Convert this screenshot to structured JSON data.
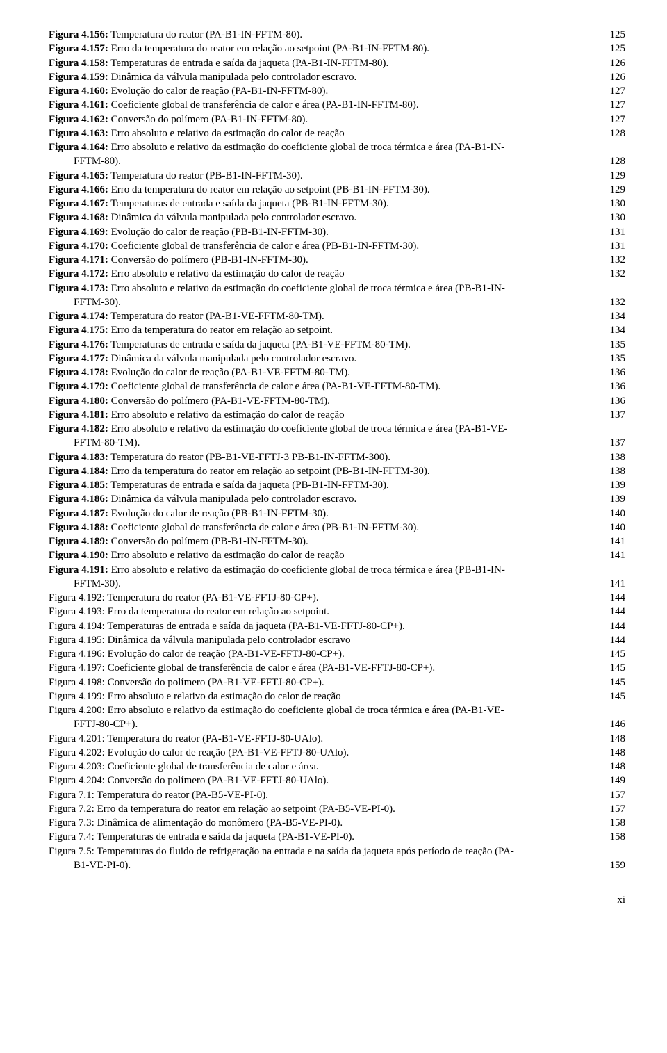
{
  "page_number": "xi",
  "entries": [
    {
      "bold": "Figura 4.156:",
      "text": " Temperatura do reator (PA-B1-IN-FFTM-80).",
      "page": "125",
      "wrap": null
    },
    {
      "bold": "Figura 4.157:",
      "text": " Erro da temperatura do reator em relação ao setpoint (PA-B1-IN-FFTM-80).",
      "page": "125",
      "wrap": null
    },
    {
      "bold": "Figura 4.158:",
      "text": " Temperaturas de entrada e saída da jaqueta (PA-B1-IN-FFTM-80).",
      "page": "126",
      "wrap": null
    },
    {
      "bold": "Figura 4.159:",
      "text": " Dinâmica da válvula manipulada pelo controlador escravo.",
      "page": "126",
      "wrap": null
    },
    {
      "bold": "Figura 4.160:",
      "text": " Evolução do calor de reação (PA-B1-IN-FFTM-80).",
      "page": "127",
      "wrap": null
    },
    {
      "bold": "Figura 4.161:",
      "text": " Coeficiente global de transferência de calor e área (PA-B1-IN-FFTM-80).",
      "page": "127",
      "wrap": null
    },
    {
      "bold": "Figura 4.162:",
      "text": " Conversão do polímero (PA-B1-IN-FFTM-80).",
      "page": "127",
      "wrap": null
    },
    {
      "bold": "Figura 4.163:",
      "text": " Erro absoluto e relativo da estimação do calor de reação",
      "page": "128",
      "wrap": null
    },
    {
      "bold": "Figura 4.164:",
      "text": " Erro absoluto e relativo da estimação do coeficiente global de troca térmica e área (PA-B1-IN-",
      "page": "128",
      "wrap": "FFTM-80)."
    },
    {
      "bold": "Figura 4.165:",
      "text": " Temperatura do reator (PB-B1-IN-FFTM-30).",
      "page": "129",
      "wrap": null
    },
    {
      "bold": "Figura 4.166:",
      "text": " Erro da temperatura do reator em relação ao setpoint (PB-B1-IN-FFTM-30).",
      "page": "129",
      "wrap": null
    },
    {
      "bold": "Figura 4.167:",
      "text": " Temperaturas de entrada e saída da jaqueta (PB-B1-IN-FFTM-30).",
      "page": "130",
      "wrap": null
    },
    {
      "bold": "Figura 4.168:",
      "text": " Dinâmica da válvula manipulada pelo controlador escravo.",
      "page": "130",
      "wrap": null
    },
    {
      "bold": "Figura 4.169:",
      "text": " Evolução do calor de reação (PB-B1-IN-FFTM-30).",
      "page": "131",
      "wrap": null
    },
    {
      "bold": "Figura 4.170:",
      "text": " Coeficiente global de transferência de calor e área (PB-B1-IN-FFTM-30).",
      "page": "131",
      "wrap": null
    },
    {
      "bold": "Figura 4.171:",
      "text": " Conversão do polímero (PB-B1-IN-FFTM-30).",
      "page": "132",
      "wrap": null
    },
    {
      "bold": "Figura 4.172:",
      "text": " Erro absoluto e relativo da estimação do calor de reação",
      "page": "132",
      "wrap": null
    },
    {
      "bold": "Figura 4.173:",
      "text": " Erro absoluto e relativo da estimação do coeficiente global de troca térmica e área (PB-B1-IN-",
      "page": "132",
      "wrap": "FFTM-30)."
    },
    {
      "bold": "Figura 4.174:",
      "text": " Temperatura do reator (PA-B1-VE-FFTM-80-TM).",
      "page": "134",
      "wrap": null
    },
    {
      "bold": "Figura 4.175:",
      "text": " Erro da temperatura do reator em relação ao setpoint.",
      "page": "134",
      "wrap": null
    },
    {
      "bold": "Figura 4.176:",
      "text": " Temperaturas de entrada e saída da jaqueta (PA-B1-VE-FFTM-80-TM).",
      "page": "135",
      "wrap": null
    },
    {
      "bold": "Figura 4.177:",
      "text": " Dinâmica da válvula manipulada pelo controlador escravo.",
      "page": "135",
      "wrap": null
    },
    {
      "bold": "Figura 4.178:",
      "text": " Evolução do calor de reação (PA-B1-VE-FFTM-80-TM).",
      "page": "136",
      "wrap": null
    },
    {
      "bold": "Figura 4.179:",
      "text": " Coeficiente global de transferência de calor e área (PA-B1-VE-FFTM-80-TM).",
      "page": "136",
      "wrap": null
    },
    {
      "bold": "Figura 4.180:",
      "text": " Conversão do polímero (PA-B1-VE-FFTM-80-TM).",
      "page": "136",
      "wrap": null
    },
    {
      "bold": "Figura 4.181:",
      "text": " Erro absoluto e relativo da estimação do calor de reação",
      "page": "137",
      "wrap": null
    },
    {
      "bold": "Figura 4.182:",
      "text": " Erro absoluto e relativo da estimação do coeficiente global de troca térmica e área (PA-B1-VE-",
      "page": "137",
      "wrap": "FFTM-80-TM)."
    },
    {
      "bold": "Figura 4.183:",
      "text": " Temperatura do reator (PB-B1-VE-FFTJ-3 PB-B1-IN-FFTM-300).",
      "page": "138",
      "wrap": null
    },
    {
      "bold": "Figura 4.184:",
      "text": " Erro da temperatura do reator em relação ao setpoint (PB-B1-IN-FFTM-30).",
      "page": "138",
      "wrap": null
    },
    {
      "bold": "Figura 4.185:",
      "text": " Temperaturas de entrada e saída da jaqueta (PB-B1-IN-FFTM-30).",
      "page": "139",
      "wrap": null
    },
    {
      "bold": "Figura 4.186:",
      "text": " Dinâmica da válvula manipulada pelo controlador escravo.",
      "page": "139",
      "wrap": null
    },
    {
      "bold": "Figura 4.187:",
      "text": " Evolução do calor de reação (PB-B1-IN-FFTM-30).",
      "page": "140",
      "wrap": null
    },
    {
      "bold": "Figura 4.188:",
      "text": " Coeficiente global de transferência de calor e área (PB-B1-IN-FFTM-30).",
      "page": "140",
      "wrap": null
    },
    {
      "bold": "Figura 4.189:",
      "text": " Conversão do polímero (PB-B1-IN-FFTM-30).",
      "page": "141",
      "wrap": null
    },
    {
      "bold": "Figura 4.190:",
      "text": " Erro absoluto e relativo da estimação do calor de reação",
      "page": "141",
      "wrap": null
    },
    {
      "bold": "Figura 4.191:",
      "text": " Erro absoluto e relativo da estimação do coeficiente global de troca térmica e área (PB-B1-IN-",
      "page": "141",
      "wrap": "FFTM-30)."
    },
    {
      "bold": "",
      "text": "Figura 4.192: Temperatura do reator (PA-B1-VE-FFTJ-80-CP+).",
      "page": "144",
      "wrap": null
    },
    {
      "bold": "",
      "text": "Figura 4.193: Erro da temperatura do reator em relação ao setpoint.",
      "page": "144",
      "wrap": null
    },
    {
      "bold": "",
      "text": "Figura 4.194: Temperaturas de entrada e saída da jaqueta (PA-B1-VE-FFTJ-80-CP+).",
      "page": "144",
      "wrap": null
    },
    {
      "bold": "",
      "text": "Figura 4.195: Dinâmica da válvula manipulada pelo controlador escravo",
      "page": "144",
      "wrap": null
    },
    {
      "bold": "",
      "text": "Figura 4.196: Evolução do calor de reação (PA-B1-VE-FFTJ-80-CP+).",
      "page": "145",
      "wrap": null
    },
    {
      "bold": "",
      "text": "Figura 4.197: Coeficiente global de transferência de calor e área (PA-B1-VE-FFTJ-80-CP+).",
      "page": "145",
      "wrap": null
    },
    {
      "bold": "",
      "text": "Figura 4.198: Conversão do polímero (PA-B1-VE-FFTJ-80-CP+).",
      "page": "145",
      "wrap": null
    },
    {
      "bold": "",
      "text": "Figura 4.199: Erro absoluto e relativo da estimação do calor de reação",
      "page": "145",
      "wrap": null
    },
    {
      "bold": "",
      "text": "Figura 4.200: Erro absoluto e relativo da estimação do coeficiente global de troca térmica e área (PA-B1-VE-",
      "page": "146",
      "wrap": "FFTJ-80-CP+)."
    },
    {
      "bold": "",
      "text": "Figura 4.201: Temperatura do reator (PA-B1-VE-FFTJ-80-UAlo).",
      "page": "148",
      "wrap": null
    },
    {
      "bold": "",
      "text": "Figura 4.202: Evolução do calor de reação (PA-B1-VE-FFTJ-80-UAlo).",
      "page": "148",
      "wrap": null
    },
    {
      "bold": "",
      "text": "Figura 4.203: Coeficiente global de transferência de calor e área.",
      "page": "148",
      "wrap": null
    },
    {
      "bold": "",
      "text": "Figura 4.204: Conversão do polímero (PA-B1-VE-FFTJ-80-UAlo).",
      "page": "149",
      "wrap": null
    },
    {
      "bold": "",
      "text": "Figura 7.1: Temperatura do reator (PA-B5-VE-PI-0).",
      "page": "157",
      "wrap": null
    },
    {
      "bold": "",
      "text": "Figura 7.2: Erro da temperatura do reator em relação ao setpoint (PA-B5-VE-PI-0).",
      "page": "157",
      "wrap": null
    },
    {
      "bold": "",
      "text": "Figura 7.3: Dinâmica de alimentação do monômero (PA-B5-VE-PI-0).",
      "page": "158",
      "wrap": null
    },
    {
      "bold": "",
      "text": "Figura 7.4: Temperaturas de entrada e saída da jaqueta (PA-B1-VE-PI-0).",
      "page": "158",
      "wrap": null
    },
    {
      "bold": "",
      "text": "Figura 7.5: Temperaturas do fluido de refrigeração na entrada e na saída da jaqueta após período de reação (PA-",
      "page": "159",
      "wrap": "B1-VE-PI-0)."
    }
  ]
}
